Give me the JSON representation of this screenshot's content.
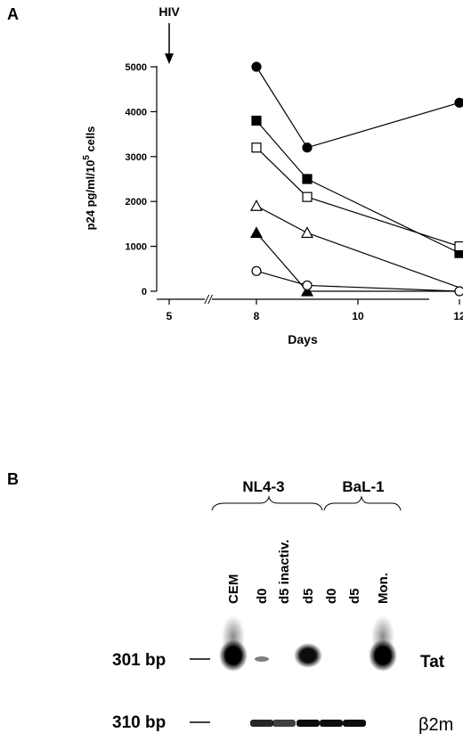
{
  "panel_a": {
    "label": "A",
    "arrow_label": "HIV",
    "chart_data": {
      "type": "line",
      "title": "",
      "xlabel": "Days",
      "ylabel": "p24 pg/ml/10",
      "ylabel_exp": "5",
      "ylabel_tail": " cells",
      "ylim": [
        0,
        5000
      ],
      "yticks": [
        0,
        1000,
        2000,
        3000,
        4000,
        5000
      ],
      "xticks": [
        5,
        8,
        10,
        12
      ],
      "axis_break": "//",
      "grid": false,
      "legend": "none",
      "series": [
        {
          "marker": "filled-circle",
          "points": [
            [
              8,
              5000
            ],
            [
              9,
              3200
            ],
            [
              12,
              4200
            ]
          ]
        },
        {
          "marker": "filled-square",
          "points": [
            [
              8,
              3800
            ],
            [
              9,
              2500
            ],
            [
              12,
              850
            ]
          ]
        },
        {
          "marker": "open-square",
          "points": [
            [
              8,
              3200
            ],
            [
              9,
              2100
            ],
            [
              12,
              1000
            ]
          ]
        },
        {
          "marker": "open-triangle",
          "points": [
            [
              8,
              1900
            ],
            [
              9,
              1300
            ],
            [
              12.2,
              0
            ]
          ]
        },
        {
          "marker": "filled-triangle",
          "points": [
            [
              8,
              1300
            ],
            [
              9,
              0
            ],
            [
              12.3,
              0
            ]
          ]
        },
        {
          "marker": "open-circle",
          "points": [
            [
              8,
              450
            ],
            [
              9,
              130
            ],
            [
              12,
              0
            ]
          ]
        }
      ]
    }
  },
  "panel_b": {
    "label": "B",
    "groups": [
      {
        "name": "NL4-3",
        "lanes": [
          0,
          4
        ]
      },
      {
        "name": "BaL-1",
        "lanes": [
          5,
          7
        ]
      }
    ],
    "lanes": [
      "CEM",
      "d0",
      "d5 inactiv.",
      "d5",
      "d0",
      "d5",
      "Mon."
    ],
    "size_markers": [
      "301 bp",
      "310 bp"
    ],
    "row_labels": [
      "Tat",
      "β2m"
    ],
    "tat_band_intensity": [
      1.0,
      0.25,
      0,
      0.95,
      0,
      0,
      1.0
    ],
    "b2m_band_intensity": [
      0,
      0.85,
      0.75,
      0.95,
      0.95,
      0.95,
      0
    ]
  }
}
